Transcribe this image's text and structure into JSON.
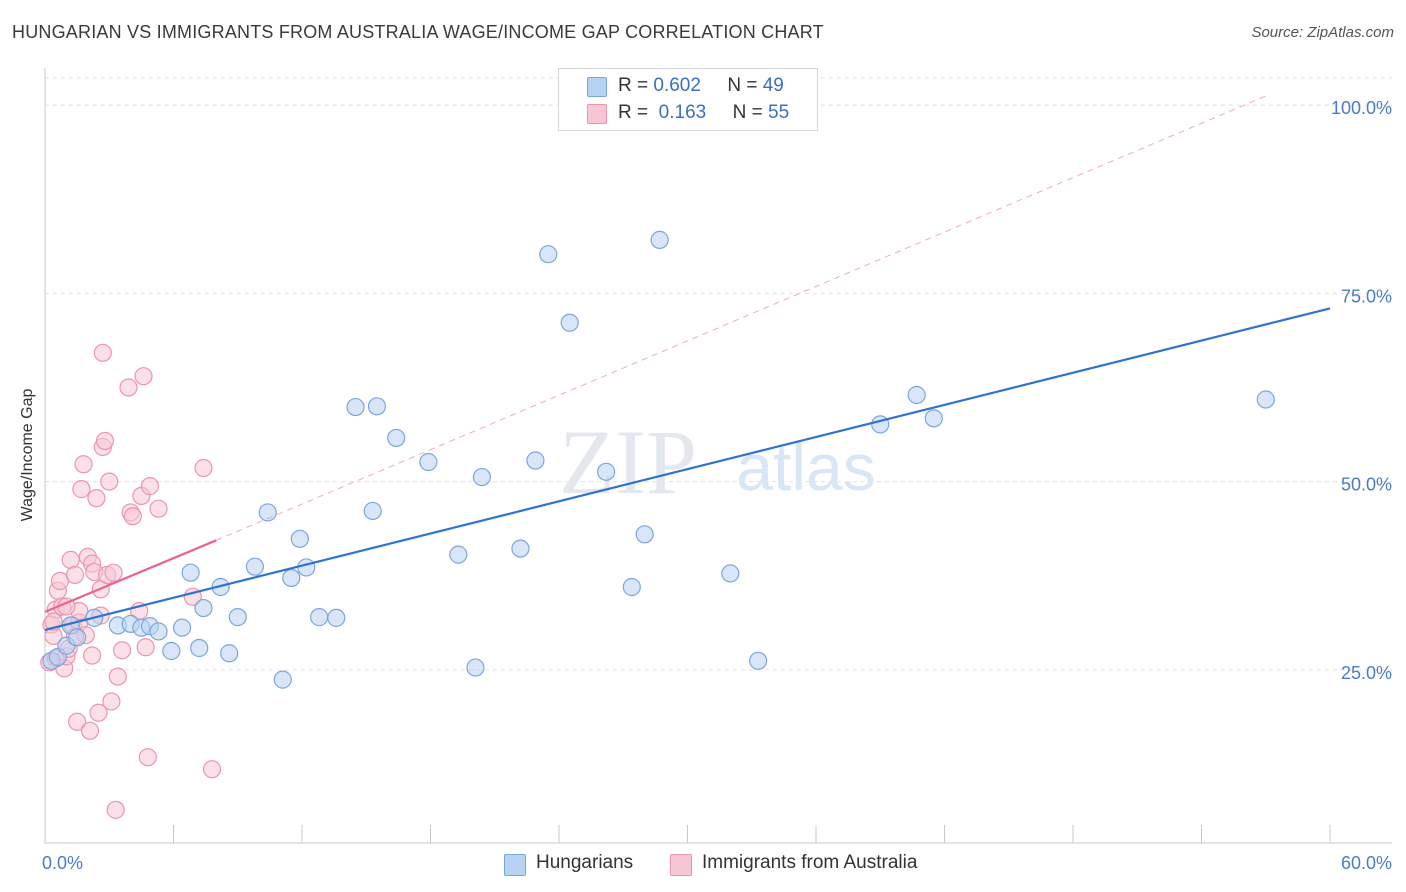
{
  "title": "HUNGARIAN VS IMMIGRANTS FROM AUSTRALIA WAGE/INCOME GAP CORRELATION CHART",
  "source": "Source: ZipAtlas.com",
  "watermark": {
    "zip": "ZIP",
    "atlas": "atlas"
  },
  "colors": {
    "blue_fill": "#b8d2f2",
    "blue_stroke": "#7aa6e0",
    "blue_line": "#2f72d0",
    "pink_fill": "#f7c6d4",
    "pink_stroke": "#ee94b0",
    "pink_line": "#e8638e",
    "grid": "#e0e0e0",
    "tick_label": "#4a7cc9"
  },
  "legend_top": [
    {
      "r_label": "R =",
      "r_value": "0.602",
      "n_label": "N =",
      "n_value": "49"
    },
    {
      "r_label": "R =",
      "r_value": "0.163",
      "n_label": "N =",
      "n_value": "55"
    }
  ],
  "legend_bottom": [
    "Hungarians",
    "Immigrants from Australia"
  ],
  "chart_data": {
    "type": "scatter",
    "title": "HUNGARIAN VS IMMIGRANTS FROM AUSTRALIA WAGE/INCOME GAP CORRELATION CHART",
    "xlabel": "",
    "ylabel": "Wage/Income Gap",
    "xlim": [
      0,
      60
    ],
    "ylim": [
      2,
      104
    ],
    "x_tick_labels": [
      "0.0%",
      "60.0%"
    ],
    "y_ticks": [
      25,
      50,
      75,
      100
    ],
    "y_tick_labels": [
      "25.0%",
      "50.0%",
      "75.0%",
      "100.0%"
    ],
    "series": [
      {
        "name": "Hungarians",
        "r": 0.602,
        "n": 49,
        "trend": {
          "x": [
            0,
            60
          ],
          "y": [
            30.3,
            73.0
          ],
          "style": "solid"
        },
        "points": [
          [
            0.3,
            26.2
          ],
          [
            0.6,
            26.7
          ],
          [
            1.0,
            28.2
          ],
          [
            1.2,
            30.9
          ],
          [
            1.5,
            29.3
          ],
          [
            2.3,
            31.9
          ],
          [
            3.4,
            30.9
          ],
          [
            4.0,
            31.1
          ],
          [
            4.5,
            30.6
          ],
          [
            4.9,
            30.8
          ],
          [
            5.3,
            30.1
          ],
          [
            5.9,
            27.5
          ],
          [
            6.4,
            30.6
          ],
          [
            6.8,
            37.9
          ],
          [
            7.2,
            27.9
          ],
          [
            7.4,
            33.2
          ],
          [
            8.2,
            36.0
          ],
          [
            8.6,
            27.2
          ],
          [
            9.0,
            32.0
          ],
          [
            9.8,
            38.7
          ],
          [
            10.4,
            45.9
          ],
          [
            11.1,
            23.7
          ],
          [
            11.5,
            37.2
          ],
          [
            11.9,
            42.4
          ],
          [
            12.2,
            38.6
          ],
          [
            12.8,
            32.0
          ],
          [
            13.6,
            31.9
          ],
          [
            14.5,
            59.9
          ],
          [
            15.3,
            46.1
          ],
          [
            15.5,
            60.0
          ],
          [
            16.4,
            55.8
          ],
          [
            17.9,
            52.6
          ],
          [
            19.3,
            40.3
          ],
          [
            20.1,
            25.3
          ],
          [
            20.4,
            50.6
          ],
          [
            22.2,
            41.1
          ],
          [
            22.9,
            52.8
          ],
          [
            23.5,
            80.2
          ],
          [
            24.5,
            71.1
          ],
          [
            26.2,
            51.3
          ],
          [
            27.4,
            36.0
          ],
          [
            28.0,
            43.0
          ],
          [
            28.7,
            82.1
          ],
          [
            32.0,
            37.8
          ],
          [
            33.3,
            26.2
          ],
          [
            39.0,
            57.6
          ],
          [
            40.7,
            61.5
          ],
          [
            41.5,
            58.4
          ],
          [
            57.0,
            60.9
          ]
        ]
      },
      {
        "name": "Immigrants from Australia",
        "r": 0.163,
        "n": 55,
        "trend": {
          "x": [
            0,
            8.0
          ],
          "y": [
            32.7,
            42.2
          ],
          "style": "solid"
        },
        "trend_extension": {
          "x": [
            8.0,
            57.0
          ],
          "y": [
            42.2,
            101.2
          ],
          "style": "dashed"
        },
        "points": [
          [
            0.2,
            26.0
          ],
          [
            0.3,
            31.0
          ],
          [
            0.4,
            29.5
          ],
          [
            0.5,
            33.0
          ],
          [
            0.6,
            35.5
          ],
          [
            0.7,
            36.8
          ],
          [
            0.8,
            33.4
          ],
          [
            0.9,
            25.2
          ],
          [
            1.0,
            26.8
          ],
          [
            1.1,
            27.8
          ],
          [
            1.2,
            39.6
          ],
          [
            1.3,
            30.9
          ],
          [
            1.4,
            37.6
          ],
          [
            1.5,
            18.1
          ],
          [
            1.6,
            31.3
          ],
          [
            1.6,
            32.8
          ],
          [
            1.7,
            49.0
          ],
          [
            1.8,
            52.3
          ],
          [
            1.9,
            29.6
          ],
          [
            2.0,
            40.0
          ],
          [
            2.1,
            16.9
          ],
          [
            2.2,
            39.1
          ],
          [
            2.3,
            38.0
          ],
          [
            2.4,
            47.8
          ],
          [
            2.5,
            19.3
          ],
          [
            2.6,
            32.2
          ],
          [
            2.6,
            35.7
          ],
          [
            2.7,
            54.6
          ],
          [
            2.7,
            67.1
          ],
          [
            2.8,
            55.4
          ],
          [
            2.9,
            37.6
          ],
          [
            3.0,
            50.0
          ],
          [
            3.1,
            20.8
          ],
          [
            3.2,
            37.9
          ],
          [
            3.3,
            6.4
          ],
          [
            3.4,
            24.1
          ],
          [
            3.6,
            27.6
          ],
          [
            3.9,
            62.5
          ],
          [
            4.0,
            45.9
          ],
          [
            4.1,
            45.4
          ],
          [
            4.4,
            32.8
          ],
          [
            4.5,
            48.1
          ],
          [
            4.6,
            64.0
          ],
          [
            4.7,
            28.0
          ],
          [
            4.8,
            13.4
          ],
          [
            4.9,
            49.4
          ],
          [
            5.3,
            46.4
          ],
          [
            6.9,
            34.7
          ],
          [
            7.4,
            51.8
          ],
          [
            7.8,
            11.8
          ],
          [
            0.5,
            26.5
          ],
          [
            1.0,
            33.4
          ],
          [
            0.4,
            31.4
          ],
          [
            1.4,
            29.4
          ],
          [
            2.2,
            26.9
          ]
        ]
      }
    ]
  }
}
